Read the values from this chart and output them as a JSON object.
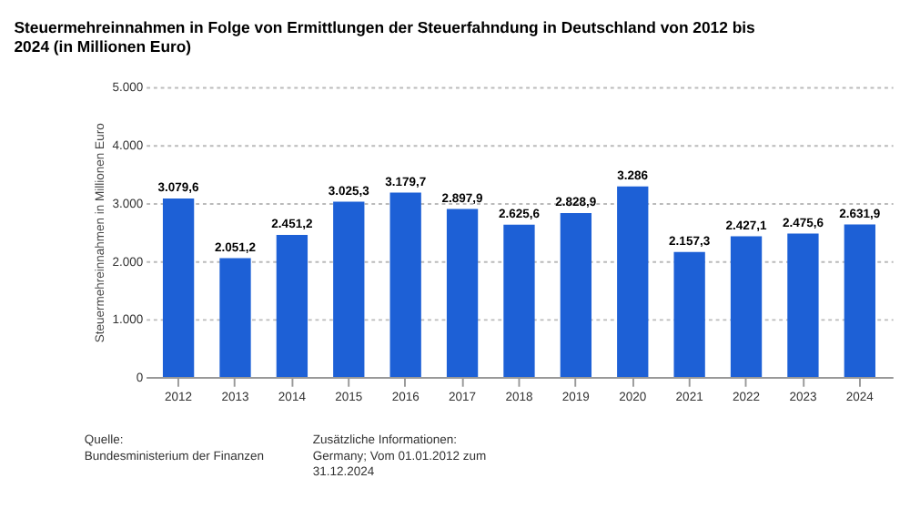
{
  "chart_data": {
    "type": "bar",
    "title": "Steuermehreinnahmen in Folge von Ermittlungen der Steuerfahndung in Deutschland von 2012 bis 2024 (in Millionen Euro)",
    "ylabel": "Steuermehreinnahmen in Millionen Euro",
    "categories": [
      "2012",
      "2013",
      "2014",
      "2015",
      "2016",
      "2017",
      "2018",
      "2019",
      "2020",
      "2021",
      "2022",
      "2023",
      "2024"
    ],
    "values": [
      3079.6,
      2051.2,
      2451.2,
      3025.3,
      3179.7,
      2897.9,
      2625.6,
      2828.9,
      3286,
      2157.3,
      2427.1,
      2475.6,
      2631.9
    ],
    "value_labels": [
      "3.079,6",
      "2.051,2",
      "2.451,2",
      "3.025,3",
      "3.179,7",
      "2.897,9",
      "2.625,6",
      "2.828,9",
      "3.286",
      "2.157,3",
      "2.427,1",
      "2.475,6",
      "2.631,9"
    ],
    "color": "#1d60d6",
    "ylim": [
      0,
      5000
    ],
    "yticks": [
      {
        "value": 0,
        "label": "0"
      },
      {
        "value": 1000,
        "label": "1.000"
      },
      {
        "value": 2000,
        "label": "2.000"
      },
      {
        "value": 3000,
        "label": "3.000"
      },
      {
        "value": 4000,
        "label": "4.000"
      },
      {
        "value": 5000,
        "label": "5.000"
      }
    ],
    "grid": "y",
    "annotations": [
      "Quelle: Bundesministerium der Finanzen",
      "Zusätzliche Informationen: Germany; Vom 01.01.2012 zum 31.12.2024"
    ]
  }
}
